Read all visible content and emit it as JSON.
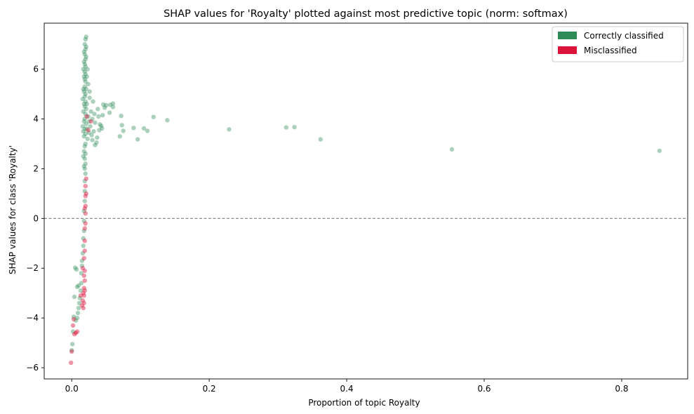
{
  "chart_data": {
    "type": "scatter",
    "title": "SHAP values for 'Royalty' plotted against most predictive topic (norm: softmax)",
    "xlabel": "Proportion of topic Royalty",
    "ylabel": "SHAP values for class 'Royalty'",
    "xlim": [
      -0.04,
      0.896
    ],
    "ylim": [
      -6.45,
      7.85
    ],
    "xticks": [
      0.0,
      0.2,
      0.4,
      0.6,
      0.8
    ],
    "xtick_labels": [
      "0.0",
      "0.2",
      "0.4",
      "0.6",
      "0.8"
    ],
    "yticks": [
      -6,
      -4,
      -2,
      0,
      2,
      4,
      6
    ],
    "ytick_labels": [
      "−6",
      "−4",
      "−2",
      "0",
      "2",
      "4",
      "6"
    ],
    "reference_line": {
      "y": 0,
      "style": "dashed",
      "color": "#808080"
    },
    "legend": {
      "position": "top-right",
      "entries": [
        "Correctly classified",
        "Misclassified"
      ]
    },
    "colors": {
      "correct": "#2e8b57",
      "misclassified": "#dc143c"
    },
    "series": [
      {
        "name": "Correctly classified",
        "points": [
          [
            0.855,
            2.72
          ],
          [
            0.553,
            2.78
          ],
          [
            0.362,
            3.18
          ],
          [
            0.324,
            3.67
          ],
          [
            0.312,
            3.66
          ],
          [
            0.229,
            3.58
          ],
          [
            0.139,
            3.95
          ],
          [
            0.119,
            4.08
          ],
          [
            0.11,
            3.52
          ],
          [
            0.105,
            3.62
          ],
          [
            0.096,
            3.18
          ],
          [
            0.09,
            3.64
          ],
          [
            0.075,
            3.52
          ],
          [
            0.073,
            3.75
          ],
          [
            0.072,
            4.12
          ],
          [
            0.07,
            3.3
          ],
          [
            0.06,
            4.62
          ],
          [
            0.06,
            4.48
          ],
          [
            0.056,
            4.57
          ],
          [
            0.055,
            4.25
          ],
          [
            0.05,
            4.55
          ],
          [
            0.048,
            4.45
          ],
          [
            0.046,
            4.58
          ],
          [
            0.045,
            4.15
          ],
          [
            0.044,
            3.62
          ],
          [
            0.043,
            3.72
          ],
          [
            0.041,
            3.78
          ],
          [
            0.04,
            3.55
          ],
          [
            0.039,
            4.1
          ],
          [
            0.038,
            4.4
          ],
          [
            0.037,
            3.25
          ],
          [
            0.036,
            3.05
          ],
          [
            0.034,
            2.95
          ],
          [
            0.034,
            3.85
          ],
          [
            0.033,
            4.2
          ],
          [
            0.032,
            3.5
          ],
          [
            0.031,
            4.7
          ],
          [
            0.03,
            3.15
          ],
          [
            0.03,
            4.0
          ],
          [
            0.029,
            3.35
          ],
          [
            0.028,
            4.3
          ],
          [
            0.027,
            3.7
          ],
          [
            0.026,
            5.1
          ],
          [
            0.026,
            4.85
          ],
          [
            0.025,
            3.9
          ],
          [
            0.025,
            3.45
          ],
          [
            0.024,
            5.4
          ],
          [
            0.024,
            4.1
          ],
          [
            0.023,
            6.0
          ],
          [
            0.023,
            3.2
          ],
          [
            0.022,
            5.7
          ],
          [
            0.022,
            4.6
          ],
          [
            0.022,
            3.6
          ],
          [
            0.021,
            7.3
          ],
          [
            0.021,
            6.9
          ],
          [
            0.021,
            6.5
          ],
          [
            0.021,
            5.2
          ],
          [
            0.021,
            4.4
          ],
          [
            0.021,
            3.8
          ],
          [
            0.02,
            7.2
          ],
          [
            0.02,
            6.8
          ],
          [
            0.02,
            6.4
          ],
          [
            0.02,
            6.1
          ],
          [
            0.02,
            5.8
          ],
          [
            0.02,
            5.5
          ],
          [
            0.02,
            5.0
          ],
          [
            0.02,
            4.7
          ],
          [
            0.02,
            4.2
          ],
          [
            0.02,
            3.4
          ],
          [
            0.02,
            3.0
          ],
          [
            0.02,
            2.6
          ],
          [
            0.02,
            2.2
          ],
          [
            0.02,
            1.8
          ],
          [
            0.019,
            7.0
          ],
          [
            0.019,
            6.6
          ],
          [
            0.019,
            6.2
          ],
          [
            0.019,
            5.9
          ],
          [
            0.019,
            5.6
          ],
          [
            0.019,
            5.3
          ],
          [
            0.019,
            4.9
          ],
          [
            0.019,
            4.5
          ],
          [
            0.019,
            4.0
          ],
          [
            0.019,
            3.6
          ],
          [
            0.019,
            2.9
          ],
          [
            0.019,
            2.4
          ],
          [
            0.019,
            2.0
          ],
          [
            0.019,
            1.5
          ],
          [
            0.019,
            1.1
          ],
          [
            0.019,
            0.7
          ],
          [
            0.018,
            6.7
          ],
          [
            0.018,
            6.3
          ],
          [
            0.018,
            5.7
          ],
          [
            0.018,
            5.1
          ],
          [
            0.018,
            4.6
          ],
          [
            0.018,
            3.9
          ],
          [
            0.018,
            3.3
          ],
          [
            0.018,
            2.7
          ],
          [
            0.018,
            2.1
          ],
          [
            0.018,
            0.3
          ],
          [
            0.018,
            -0.1
          ],
          [
            0.018,
            -0.5
          ],
          [
            0.017,
            6.0
          ],
          [
            0.017,
            5.2
          ],
          [
            0.017,
            4.3
          ],
          [
            0.017,
            3.5
          ],
          [
            0.017,
            2.5
          ],
          [
            0.017,
            -0.8
          ],
          [
            0.017,
            -1.1
          ],
          [
            0.016,
            4.8
          ],
          [
            0.016,
            3.7
          ],
          [
            0.016,
            -1.4
          ],
          [
            0.015,
            -1.7
          ],
          [
            0.015,
            -1.9
          ],
          [
            0.014,
            -2.2
          ],
          [
            0.014,
            -2.6
          ],
          [
            0.013,
            -2.9
          ],
          [
            0.012,
            -3.2
          ],
          [
            0.011,
            -3.4
          ],
          [
            0.01,
            -2.7
          ],
          [
            0.01,
            -3.6
          ],
          [
            0.009,
            -3.8
          ],
          [
            0.008,
            -2.75
          ],
          [
            0.008,
            -4.0
          ],
          [
            0.007,
            -2.05
          ],
          [
            0.006,
            -4.1
          ],
          [
            0.005,
            -1.98
          ],
          [
            0.004,
            -3.15
          ],
          [
            0.003,
            -3.95
          ],
          [
            0.002,
            -4.55
          ],
          [
            0.001,
            -5.05
          ],
          [
            0.0,
            -5.3
          ]
        ]
      },
      {
        "name": "Misclassified",
        "points": [
          [
            0.028,
            3.9
          ],
          [
            0.024,
            3.55
          ],
          [
            0.022,
            4.1
          ],
          [
            0.021,
            1.6
          ],
          [
            0.021,
            1.0
          ],
          [
            0.02,
            1.3
          ],
          [
            0.02,
            0.9
          ],
          [
            0.02,
            0.5
          ],
          [
            0.02,
            0.2
          ],
          [
            0.02,
            -0.2
          ],
          [
            0.019,
            0.4
          ],
          [
            0.019,
            -0.4
          ],
          [
            0.019,
            -0.9
          ],
          [
            0.019,
            -1.3
          ],
          [
            0.019,
            -2.1
          ],
          [
            0.019,
            -2.5
          ],
          [
            0.019,
            -2.9
          ],
          [
            0.018,
            -1.6
          ],
          [
            0.018,
            -2.3
          ],
          [
            0.018,
            -2.8
          ],
          [
            0.018,
            -3.1
          ],
          [
            0.018,
            -3.4
          ],
          [
            0.017,
            -3.0
          ],
          [
            0.017,
            -3.6
          ],
          [
            0.016,
            -3.3
          ],
          [
            0.016,
            -2.0
          ],
          [
            0.015,
            -3.5
          ],
          [
            0.013,
            -3.1
          ],
          [
            0.008,
            -4.55
          ],
          [
            0.006,
            -4.6
          ],
          [
            0.004,
            -4.65
          ],
          [
            0.003,
            -4.05
          ],
          [
            0.002,
            -4.3
          ],
          [
            0.0,
            -5.35
          ],
          [
            -0.001,
            -5.8
          ]
        ]
      }
    ]
  }
}
